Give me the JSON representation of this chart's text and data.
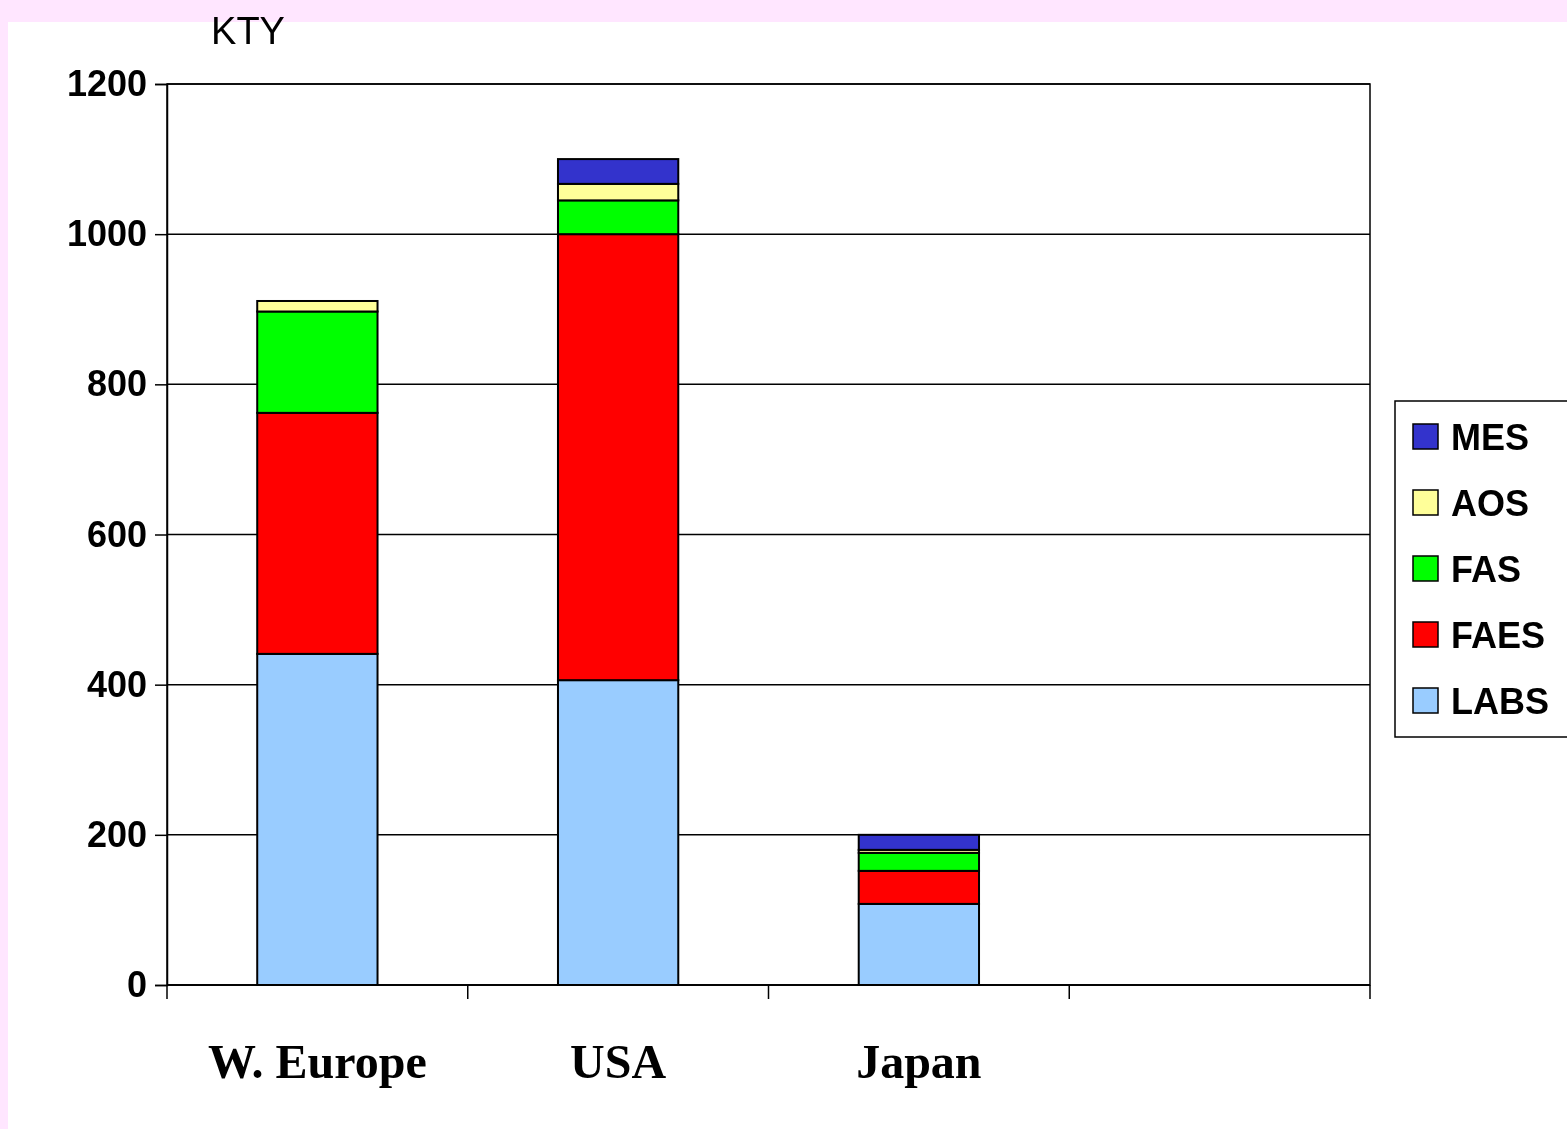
{
  "chart_data": {
    "type": "bar",
    "stacked": true,
    "ylabel": "KTY",
    "categories": [
      "W. Europe",
      "USA",
      "Japan",
      null
    ],
    "series": [
      {
        "name": "LABS",
        "color": "#99ccff",
        "values": [
          441,
          406,
          108,
          null
        ]
      },
      {
        "name": "FAES",
        "color": "#ff0000",
        "values": [
          321,
          594,
          44,
          null
        ]
      },
      {
        "name": "FAS",
        "color": "#00ff00",
        "values": [
          135,
          45,
          24,
          null
        ]
      },
      {
        "name": "AOS",
        "color": "#ffff99",
        "values": [
          14,
          22,
          4,
          null
        ]
      },
      {
        "name": "MES",
        "color": "#3333cc",
        "values": [
          0,
          33,
          20,
          null
        ]
      }
    ],
    "ylim": [
      0,
      1200
    ],
    "yticks": [
      0,
      200,
      400,
      600,
      800,
      1000,
      1200
    ],
    "grid": "y",
    "legend": "right"
  }
}
